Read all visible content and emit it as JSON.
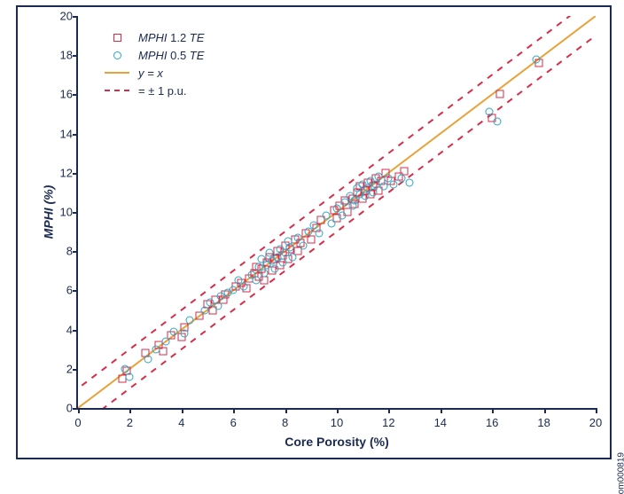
{
  "chart": {
    "type": "scatter",
    "xlabel": "Core Porosity (%)",
    "ylabel": "MPHI (%)",
    "side_label": "om000819",
    "xlim": [
      0,
      20
    ],
    "ylim": [
      0,
      20
    ],
    "xtick_step": 2,
    "ytick_step": 2,
    "xticks": [
      0,
      2,
      4,
      6,
      8,
      10,
      12,
      14,
      16,
      18,
      20
    ],
    "yticks": [
      0,
      2,
      4,
      6,
      8,
      10,
      12,
      14,
      16,
      18,
      20
    ],
    "axis_color": "#1a2a50",
    "background_color": "#ffffff",
    "label_fontsize": 14,
    "tick_fontsize": 13,
    "legend_fontsize": 13,
    "legend_position": "upper-left",
    "lines": [
      {
        "name": "y_eq_x",
        "label": "y = x",
        "style": "solid",
        "color": "#e8a23a",
        "width": 2,
        "y_intercept": 0
      },
      {
        "name": "plus_1pu",
        "label": "= ± 1 p.u.",
        "style": "dashed",
        "color": "#d62e4a",
        "width": 2,
        "y_intercept": 1
      },
      {
        "name": "minus_1pu",
        "label": "= ± 1 p.u.",
        "style": "dashed",
        "color": "#d62e4a",
        "width": 2,
        "y_intercept": -1
      }
    ],
    "series": [
      {
        "name": "mphi_1p2_te",
        "label_prefix": "MPHI",
        "label_mid": " 1.2 ",
        "label_suffix": "TE",
        "marker": "square",
        "marker_size": 7,
        "color": "#d62e4a",
        "points": [
          [
            1.7,
            1.5
          ],
          [
            1.9,
            1.9
          ],
          [
            2.6,
            2.8
          ],
          [
            3.1,
            3.2
          ],
          [
            3.3,
            2.9
          ],
          [
            3.6,
            3.7
          ],
          [
            4.0,
            3.6
          ],
          [
            4.1,
            4.1
          ],
          [
            4.7,
            4.7
          ],
          [
            5.0,
            5.3
          ],
          [
            5.2,
            5.0
          ],
          [
            5.3,
            5.5
          ],
          [
            5.6,
            5.5
          ],
          [
            5.7,
            5.8
          ],
          [
            6.1,
            6.2
          ],
          [
            6.3,
            6.4
          ],
          [
            6.5,
            6.1
          ],
          [
            6.6,
            6.6
          ],
          [
            6.8,
            6.9
          ],
          [
            6.9,
            7.2
          ],
          [
            7.0,
            6.7
          ],
          [
            7.1,
            7.1
          ],
          [
            7.2,
            6.5
          ],
          [
            7.3,
            7.4
          ],
          [
            7.4,
            7.7
          ],
          [
            7.5,
            7.0
          ],
          [
            7.6,
            7.6
          ],
          [
            7.7,
            8.0
          ],
          [
            7.8,
            7.3
          ],
          [
            7.9,
            7.8
          ],
          [
            8.0,
            8.3
          ],
          [
            8.1,
            7.6
          ],
          [
            8.2,
            8.1
          ],
          [
            8.4,
            8.6
          ],
          [
            8.5,
            8.0
          ],
          [
            8.6,
            8.4
          ],
          [
            8.8,
            8.9
          ],
          [
            9.0,
            8.6
          ],
          [
            9.2,
            9.2
          ],
          [
            9.4,
            9.6
          ],
          [
            9.9,
            10.1
          ],
          [
            10.0,
            9.7
          ],
          [
            10.1,
            10.3
          ],
          [
            10.3,
            10.6
          ],
          [
            10.4,
            10.0
          ],
          [
            10.6,
            10.7
          ],
          [
            10.7,
            10.4
          ],
          [
            10.8,
            11.0
          ],
          [
            10.9,
            11.3
          ],
          [
            11.0,
            10.7
          ],
          [
            11.1,
            11.1
          ],
          [
            11.2,
            11.5
          ],
          [
            11.3,
            10.9
          ],
          [
            11.4,
            11.3
          ],
          [
            11.5,
            11.7
          ],
          [
            11.6,
            11.1
          ],
          [
            11.7,
            11.6
          ],
          [
            11.9,
            12.0
          ],
          [
            12.1,
            11.6
          ],
          [
            12.4,
            11.8
          ],
          [
            12.6,
            12.1
          ],
          [
            16.0,
            14.8
          ],
          [
            16.3,
            16.0
          ],
          [
            17.8,
            17.6
          ]
        ]
      },
      {
        "name": "mphi_0p5_te",
        "label_prefix": "MPHI",
        "label_mid": " 0.5 ",
        "label_suffix": "TE",
        "marker": "circle",
        "marker_size": 7,
        "color": "#2aa6c9",
        "points": [
          [
            1.8,
            2.0
          ],
          [
            2.0,
            1.6
          ],
          [
            2.7,
            2.5
          ],
          [
            3.0,
            3.0
          ],
          [
            3.4,
            3.4
          ],
          [
            3.7,
            3.9
          ],
          [
            4.1,
            3.8
          ],
          [
            4.3,
            4.5
          ],
          [
            4.9,
            5.0
          ],
          [
            5.1,
            5.4
          ],
          [
            5.4,
            5.2
          ],
          [
            5.5,
            5.7
          ],
          [
            5.8,
            5.9
          ],
          [
            6.0,
            6.0
          ],
          [
            6.2,
            6.5
          ],
          [
            6.4,
            6.2
          ],
          [
            6.7,
            6.8
          ],
          [
            6.9,
            6.5
          ],
          [
            7.0,
            7.2
          ],
          [
            7.1,
            7.6
          ],
          [
            7.2,
            6.9
          ],
          [
            7.3,
            7.3
          ],
          [
            7.4,
            7.9
          ],
          [
            7.5,
            7.5
          ],
          [
            7.6,
            7.1
          ],
          [
            7.7,
            7.7
          ],
          [
            7.8,
            8.1
          ],
          [
            7.9,
            7.4
          ],
          [
            8.0,
            7.9
          ],
          [
            8.1,
            8.5
          ],
          [
            8.2,
            8.2
          ],
          [
            8.3,
            7.7
          ],
          [
            8.5,
            8.7
          ],
          [
            8.7,
            8.3
          ],
          [
            8.9,
            9.0
          ],
          [
            9.1,
            9.3
          ],
          [
            9.3,
            8.9
          ],
          [
            9.6,
            9.8
          ],
          [
            9.8,
            9.4
          ],
          [
            10.0,
            10.2
          ],
          [
            10.2,
            9.8
          ],
          [
            10.3,
            10.5
          ],
          [
            10.5,
            10.8
          ],
          [
            10.6,
            10.3
          ],
          [
            10.7,
            10.6
          ],
          [
            10.8,
            11.2
          ],
          [
            10.9,
            10.9
          ],
          [
            11.0,
            11.4
          ],
          [
            11.1,
            10.8
          ],
          [
            11.2,
            11.2
          ],
          [
            11.3,
            11.6
          ],
          [
            11.4,
            11.0
          ],
          [
            11.5,
            11.4
          ],
          [
            11.6,
            11.8
          ],
          [
            11.8,
            11.3
          ],
          [
            12.0,
            11.7
          ],
          [
            12.2,
            11.4
          ],
          [
            12.5,
            11.7
          ],
          [
            12.8,
            11.5
          ],
          [
            15.9,
            15.1
          ],
          [
            16.2,
            14.6
          ],
          [
            17.7,
            17.8
          ]
        ]
      }
    ],
    "legend_items": [
      {
        "kind": "square",
        "color": "#d62e4a",
        "text_ital1": "MPHI",
        "text_plain": " 1.2 ",
        "text_ital2": "TE"
      },
      {
        "kind": "circle",
        "color": "#2aa6c9",
        "text_ital1": "MPHI",
        "text_plain": " 0.5 ",
        "text_ital2": "TE"
      },
      {
        "kind": "solid",
        "color": "#e8a23a",
        "text_ital1": "y = x",
        "text_plain": "",
        "text_ital2": ""
      },
      {
        "kind": "dashed",
        "color": "#d62e4a",
        "text_ital1": "",
        "text_plain": "= ± 1 p.u.",
        "text_ital2": ""
      }
    ]
  }
}
